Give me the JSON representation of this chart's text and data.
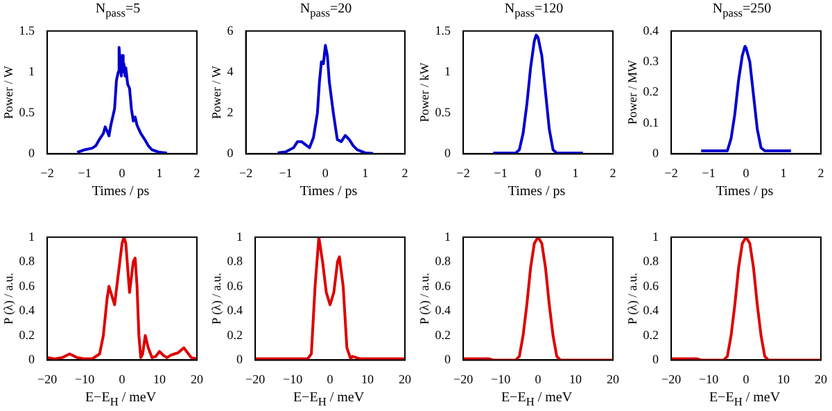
{
  "chart_data": [
    {
      "type": "line",
      "title": "N$_{pass}$=5",
      "xlabel": "Times / ps",
      "ylabel": "Power / W",
      "xlim": [
        -2,
        2
      ],
      "xticks": [
        -2,
        -1,
        0,
        1,
        2
      ],
      "ylim": [
        0,
        1.5
      ],
      "yticks": [
        0,
        0.5,
        1,
        1.5
      ],
      "grid": false,
      "legend": false,
      "x": [
        -1.2,
        -1.0,
        -0.8,
        -0.7,
        -0.6,
        -0.5,
        -0.45,
        -0.4,
        -0.35,
        -0.3,
        -0.2,
        -0.15,
        -0.1,
        -0.08,
        -0.05,
        -0.02,
        0,
        0.03,
        0.05,
        0.08,
        0.1,
        0.15,
        0.2,
        0.25,
        0.3,
        0.35,
        0.4,
        0.5,
        0.6,
        0.7,
        0.8,
        1.0,
        1.2
      ],
      "series": [
        {
          "color": "#0000cc",
          "values": [
            0.02,
            0.05,
            0.07,
            0.1,
            0.18,
            0.25,
            0.33,
            0.28,
            0.22,
            0.35,
            0.55,
            0.9,
            1.0,
            1.3,
            1.1,
            0.95,
            1.2,
            1.0,
            1.1,
            0.95,
            1.05,
            0.85,
            0.8,
            0.55,
            0.4,
            0.45,
            0.35,
            0.25,
            0.18,
            0.1,
            0.05,
            0.02,
            0.01
          ]
        }
      ]
    },
    {
      "type": "line",
      "title": "N$_{pass}$=20",
      "xlabel": "Times / ps",
      "ylabel": "Power / W",
      "xlim": [
        -2,
        2
      ],
      "xticks": [
        -2,
        -1,
        0,
        1,
        2
      ],
      "ylim": [
        0,
        6
      ],
      "yticks": [
        0,
        2,
        4,
        6
      ],
      "grid": false,
      "legend": false,
      "x": [
        -1.2,
        -1.0,
        -0.8,
        -0.7,
        -0.6,
        -0.5,
        -0.4,
        -0.3,
        -0.2,
        -0.15,
        -0.1,
        -0.05,
        0,
        0.05,
        0.1,
        0.2,
        0.3,
        0.4,
        0.5,
        0.6,
        0.7,
        0.8,
        1.0,
        1.2
      ],
      "series": [
        {
          "color": "#0000cc",
          "values": [
            0.05,
            0.1,
            0.3,
            0.6,
            0.6,
            0.45,
            0.3,
            0.8,
            2.0,
            3.5,
            4.5,
            4.4,
            5.3,
            4.8,
            3.5,
            2.0,
            0.7,
            0.6,
            0.9,
            0.7,
            0.4,
            0.2,
            0.05,
            0.02
          ]
        }
      ]
    },
    {
      "type": "line",
      "title": "N$_{pass}$=120",
      "xlabel": "Times / ps",
      "ylabel": "Power / kW",
      "xlim": [
        -2,
        2
      ],
      "xticks": [
        -2,
        -1,
        0,
        1,
        2
      ],
      "ylim": [
        0,
        1.5
      ],
      "yticks": [
        0,
        0.5,
        1,
        1.5
      ],
      "grid": false,
      "legend": false,
      "x": [
        -1.2,
        -0.6,
        -0.5,
        -0.4,
        -0.3,
        -0.2,
        -0.1,
        -0.05,
        0,
        0.1,
        0.2,
        0.3,
        0.4,
        0.5,
        1.2
      ],
      "series": [
        {
          "color": "#0000cc",
          "values": [
            0.01,
            0.01,
            0.05,
            0.25,
            0.6,
            1.05,
            1.38,
            1.45,
            1.42,
            1.2,
            0.75,
            0.3,
            0.05,
            0.01,
            0.01
          ]
        }
      ]
    },
    {
      "type": "line",
      "title": "N$_{pass}$=250",
      "xlabel": "Times / ps",
      "ylabel": "Power / MW",
      "xlim": [
        -2,
        2
      ],
      "xticks": [
        -2,
        -1,
        0,
        1,
        2
      ],
      "ylim": [
        0,
        0.4
      ],
      "yticks": [
        0,
        0.1,
        0.2,
        0.3,
        0.4
      ],
      "grid": false,
      "legend": false,
      "x": [
        -1.2,
        -0.6,
        -0.5,
        -0.4,
        -0.3,
        -0.2,
        -0.1,
        -0.03,
        0,
        0.1,
        0.2,
        0.3,
        0.4,
        0.5,
        1.2
      ],
      "series": [
        {
          "color": "#0000cc",
          "values": [
            0.01,
            0.01,
            0.01,
            0.05,
            0.13,
            0.24,
            0.32,
            0.35,
            0.345,
            0.3,
            0.19,
            0.08,
            0.02,
            0.01,
            0.01
          ]
        }
      ]
    },
    {
      "type": "line",
      "xlabel": "E−E$_{H}$ / meV",
      "ylabel": "P (λ) / a.u.",
      "xlim": [
        -20,
        20
      ],
      "xticks": [
        -20,
        -10,
        0,
        10,
        20
      ],
      "ylim": [
        0,
        1
      ],
      "yticks": [
        0,
        0.2,
        0.4,
        0.6,
        0.8,
        1
      ],
      "grid": false,
      "legend": false,
      "x": [
        -20,
        -18,
        -16,
        -14,
        -12,
        -10,
        -8,
        -6,
        -5,
        -4,
        -3.5,
        -3,
        -2,
        -1,
        0,
        0.5,
        1,
        2,
        3,
        3.5,
        4,
        4.5,
        5,
        5.5,
        6.2,
        7,
        8,
        9,
        10,
        11,
        12,
        13,
        14,
        15,
        16.5,
        17.5,
        18.5,
        20
      ],
      "series": [
        {
          "color": "#dd0000",
          "values": [
            0.02,
            0.01,
            0.02,
            0.05,
            0.02,
            0.01,
            0.01,
            0.05,
            0.2,
            0.5,
            0.6,
            0.55,
            0.45,
            0.7,
            0.95,
            1.0,
            0.95,
            0.55,
            0.8,
            0.83,
            0.6,
            0.2,
            0.02,
            0.05,
            0.2,
            0.1,
            0.02,
            0.03,
            0.07,
            0.04,
            0.02,
            0.04,
            0.05,
            0.06,
            0.1,
            0.06,
            0.02,
            0.01
          ]
        }
      ]
    },
    {
      "type": "line",
      "xlabel": "E−E$_{H}$ / meV",
      "ylabel": "P (λ) / a.u.",
      "xlim": [
        -20,
        20
      ],
      "xticks": [
        -20,
        -10,
        0,
        10,
        20
      ],
      "ylim": [
        0,
        1
      ],
      "yticks": [
        0,
        0.2,
        0.4,
        0.6,
        0.8,
        1
      ],
      "grid": false,
      "legend": false,
      "x": [
        -20,
        -10,
        -6,
        -5,
        -4,
        -3,
        -2,
        -1,
        0,
        1,
        2,
        2.5,
        3.5,
        4.5,
        5.5,
        6,
        7,
        8,
        9,
        10,
        20
      ],
      "series": [
        {
          "color": "#dd0000",
          "values": [
            0.01,
            0.01,
            0.01,
            0.05,
            0.6,
            1.0,
            0.8,
            0.55,
            0.45,
            0.55,
            0.8,
            0.84,
            0.6,
            0.1,
            0.01,
            0.03,
            0.02,
            0.01,
            0.01,
            0.01,
            0.01
          ]
        }
      ]
    },
    {
      "type": "line",
      "xlabel": "E−E$_{H}$ / meV",
      "ylabel": "P (λ) / a.u.",
      "xlim": [
        -20,
        20
      ],
      "xticks": [
        -20,
        -10,
        0,
        10,
        20
      ],
      "ylim": [
        0,
        1
      ],
      "yticks": [
        0,
        0.2,
        0.4,
        0.6,
        0.8,
        1
      ],
      "grid": false,
      "legend": false,
      "x": [
        -20,
        -13,
        -12,
        -6,
        -5,
        -4,
        -3,
        -2,
        -1,
        0,
        1,
        2,
        3,
        4,
        5,
        6,
        20
      ],
      "series": [
        {
          "color": "#dd0000",
          "values": [
            0.01,
            0.01,
            0,
            0,
            0.03,
            0.2,
            0.45,
            0.75,
            0.95,
            1.0,
            0.95,
            0.75,
            0.45,
            0.2,
            0.03,
            0,
            0
          ]
        }
      ]
    },
    {
      "type": "line",
      "xlabel": "E−E$_{H}$ / meV",
      "ylabel": "P (λ) / a.u.",
      "xlim": [
        -20,
        20
      ],
      "xticks": [
        -20,
        -10,
        0,
        10,
        20
      ],
      "ylim": [
        0,
        1
      ],
      "yticks": [
        0,
        0.2,
        0.4,
        0.6,
        0.8,
        1
      ],
      "grid": false,
      "legend": false,
      "x": [
        -20,
        -13,
        -12,
        -6,
        -5,
        -4,
        -3,
        -2,
        -1,
        0,
        1,
        2,
        3,
        4,
        5,
        6,
        20
      ],
      "series": [
        {
          "color": "#dd0000",
          "values": [
            0.01,
            0.01,
            0,
            0,
            0.03,
            0.2,
            0.45,
            0.75,
            0.95,
            1.0,
            0.95,
            0.75,
            0.45,
            0.2,
            0.03,
            0,
            0
          ]
        }
      ]
    }
  ]
}
